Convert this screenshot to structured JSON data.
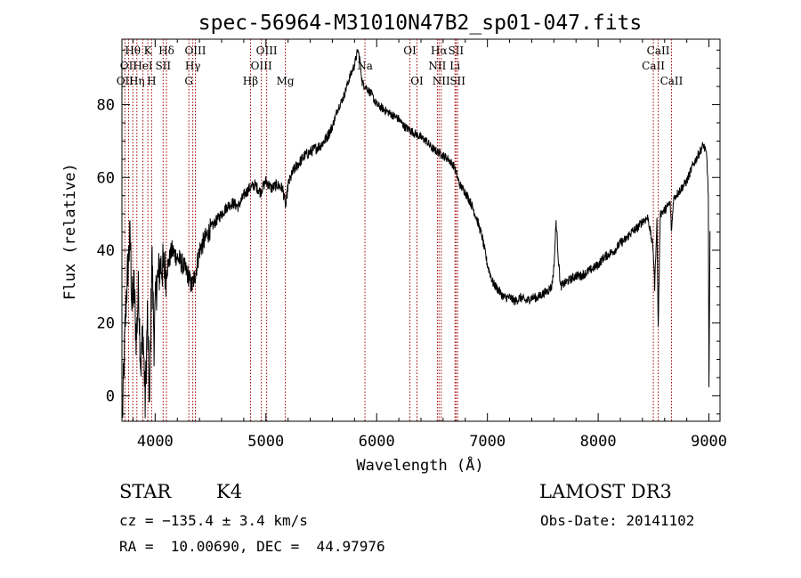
{
  "chart_data": {
    "type": "line",
    "title": "spec-56964-M31010N47B2_sp01-047.fits",
    "xlabel": "Wavelength (Å)",
    "ylabel": "Flux (relative)",
    "xlim": [
      3700,
      9100
    ],
    "ylim": [
      -7,
      98
    ],
    "x_ticks": [
      4000,
      5000,
      6000,
      7000,
      8000,
      9000
    ],
    "y_ticks": [
      0,
      20,
      40,
      60,
      80
    ],
    "grid": false,
    "line_color": "#000000",
    "marker_color": "#a00000",
    "spectrum_anchors": [
      [
        3705,
        -6
      ],
      [
        3720,
        10
      ],
      [
        3740,
        28
      ],
      [
        3760,
        38
      ],
      [
        3775,
        44
      ],
      [
        3790,
        25
      ],
      [
        3810,
        30
      ],
      [
        3830,
        15
      ],
      [
        3850,
        30
      ],
      [
        3870,
        8
      ],
      [
        3890,
        18
      ],
      [
        3910,
        -2
      ],
      [
        3930,
        22
      ],
      [
        3950,
        -4
      ],
      [
        3970,
        40
      ],
      [
        3990,
        15
      ],
      [
        4010,
        30
      ],
      [
        4050,
        36
      ],
      [
        4100,
        34
      ],
      [
        4150,
        40
      ],
      [
        4200,
        38
      ],
      [
        4250,
        36
      ],
      [
        4300,
        33
      ],
      [
        4330,
        30
      ],
      [
        4360,
        33
      ],
      [
        4400,
        40
      ],
      [
        4450,
        43
      ],
      [
        4500,
        46
      ],
      [
        4550,
        48
      ],
      [
        4600,
        50
      ],
      [
        4650,
        52
      ],
      [
        4700,
        53
      ],
      [
        4750,
        52
      ],
      [
        4800,
        55
      ],
      [
        4850,
        57
      ],
      [
        4900,
        58
      ],
      [
        4950,
        56
      ],
      [
        5000,
        59
      ],
      [
        5050,
        57
      ],
      [
        5100,
        58
      ],
      [
        5150,
        57
      ],
      [
        5180,
        52
      ],
      [
        5200,
        58
      ],
      [
        5250,
        62
      ],
      [
        5300,
        64
      ],
      [
        5350,
        66
      ],
      [
        5400,
        67
      ],
      [
        5450,
        68
      ],
      [
        5500,
        69
      ],
      [
        5550,
        71
      ],
      [
        5600,
        74
      ],
      [
        5650,
        79
      ],
      [
        5700,
        82
      ],
      [
        5750,
        87
      ],
      [
        5800,
        91
      ],
      [
        5830,
        95
      ],
      [
        5850,
        92
      ],
      [
        5870,
        86
      ],
      [
        5900,
        85
      ],
      [
        5950,
        83
      ],
      [
        6000,
        80
      ],
      [
        6050,
        79
      ],
      [
        6100,
        78
      ],
      [
        6150,
        77
      ],
      [
        6200,
        76
      ],
      [
        6250,
        74
      ],
      [
        6300,
        73
      ],
      [
        6350,
        72
      ],
      [
        6400,
        71
      ],
      [
        6450,
        70
      ],
      [
        6500,
        68
      ],
      [
        6550,
        67
      ],
      [
        6600,
        66
      ],
      [
        6650,
        65
      ],
      [
        6700,
        63
      ],
      [
        6750,
        58
      ],
      [
        6800,
        56
      ],
      [
        6850,
        53
      ],
      [
        6900,
        49
      ],
      [
        6950,
        44
      ],
      [
        7000,
        36
      ],
      [
        7050,
        31
      ],
      [
        7100,
        29
      ],
      [
        7150,
        27
      ],
      [
        7200,
        27
      ],
      [
        7250,
        26
      ],
      [
        7300,
        27
      ],
      [
        7350,
        26
      ],
      [
        7400,
        27
      ],
      [
        7450,
        27
      ],
      [
        7500,
        28
      ],
      [
        7550,
        29
      ],
      [
        7580,
        30
      ],
      [
        7600,
        35
      ],
      [
        7620,
        48
      ],
      [
        7640,
        38
      ],
      [
        7660,
        30
      ],
      [
        7700,
        31
      ],
      [
        7750,
        32
      ],
      [
        7800,
        33
      ],
      [
        7850,
        33
      ],
      [
        7900,
        34
      ],
      [
        7950,
        35
      ],
      [
        8000,
        36
      ],
      [
        8050,
        38
      ],
      [
        8100,
        39
      ],
      [
        8150,
        40
      ],
      [
        8200,
        42
      ],
      [
        8250,
        43
      ],
      [
        8300,
        45
      ],
      [
        8350,
        46
      ],
      [
        8400,
        48
      ],
      [
        8450,
        49
      ],
      [
        8498,
        40
      ],
      [
        8510,
        30
      ],
      [
        8530,
        48
      ],
      [
        8542,
        18
      ],
      [
        8560,
        50
      ],
      [
        8600,
        51
      ],
      [
        8650,
        53
      ],
      [
        8662,
        45
      ],
      [
        8680,
        54
      ],
      [
        8700,
        55
      ],
      [
        8750,
        57
      ],
      [
        8800,
        59
      ],
      [
        8850,
        63
      ],
      [
        8900,
        66
      ],
      [
        8950,
        69
      ],
      [
        8980,
        66
      ],
      [
        8995,
        55
      ],
      [
        9000,
        2
      ],
      [
        9010,
        44
      ]
    ],
    "line_markers": [
      {
        "label": "OII",
        "wave": 3727,
        "row": 2
      },
      {
        "label": "Hθ",
        "wave": 3798,
        "row": 0
      },
      {
        "label": "OII",
        "wave": 3760,
        "row": 1
      },
      {
        "label": "Hη",
        "wave": 3835,
        "row": 2
      },
      {
        "label": "HeI",
        "wave": 3889,
        "row": 1
      },
      {
        "label": "K",
        "wave": 3934,
        "row": 0
      },
      {
        "label": "H",
        "wave": 3968,
        "row": 2
      },
      {
        "label": "SII",
        "wave": 4072,
        "row": 1
      },
      {
        "label": "Hδ",
        "wave": 4102,
        "row": 0
      },
      {
        "label": "G",
        "wave": 4304,
        "row": 2
      },
      {
        "label": "Hγ",
        "wave": 4340,
        "row": 1
      },
      {
        "label": "OIII",
        "wave": 4363,
        "row": 0
      },
      {
        "label": "Hβ",
        "wave": 4861,
        "row": 2
      },
      {
        "label": "OIII",
        "wave": 4959,
        "row": 1
      },
      {
        "label": "OIII",
        "wave": 5007,
        "row": 0
      },
      {
        "label": "Mg",
        "wave": 5175,
        "row": 2
      },
      {
        "label": "Na",
        "wave": 5894,
        "row": 1
      },
      {
        "label": "OI",
        "wave": 6300,
        "row": 0
      },
      {
        "label": "OI",
        "wave": 6364,
        "row": 2
      },
      {
        "label": "NII",
        "wave": 6548,
        "row": 1
      },
      {
        "label": "Hα",
        "wave": 6563,
        "row": 0
      },
      {
        "label": "NII",
        "wave": 6583,
        "row": 2
      },
      {
        "label": "Li",
        "wave": 6707,
        "row": 1
      },
      {
        "label": "SII",
        "wave": 6716,
        "row": 0
      },
      {
        "label": "SII",
        "wave": 6731,
        "row": 2
      },
      {
        "label": "CaII",
        "wave": 8498,
        "row": 1
      },
      {
        "label": "CaII",
        "wave": 8542,
        "row": 0
      },
      {
        "label": "CaII",
        "wave": 8662,
        "row": 2
      }
    ]
  },
  "info": {
    "class_label": "STAR",
    "subclass": "K4",
    "survey": "LAMOST DR3",
    "redshift_line": "cz = −135.4 ± 3.4 km/s",
    "obs_date_line": "Obs-Date: 20141102",
    "coords_line": "RA =  10.00690, DEC =  44.97976"
  }
}
